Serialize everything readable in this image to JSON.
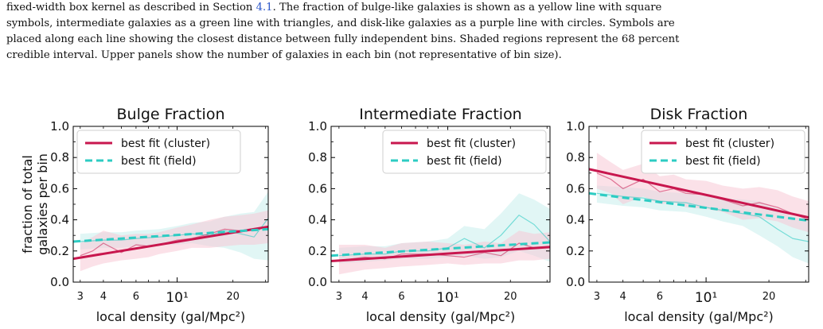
{
  "caption": {
    "line1_before_ref": "fixed-width box kernel as described in Section ",
    "ref": "4.1",
    "line1_after_ref": ". The fraction of bulge-like galaxies is shown as a yellow line with square",
    "line2": "symbols, intermediate galaxies as a green line with triangles, and disk-like galaxies as a purple line with circles. Symbols are",
    "line3": "placed along each line showing the closest distance between fully independent bins. Shaded regions represent the 68 percent",
    "line4": "credible interval. Upper panels show the number of galaxies in each bin (not representative of bin size)."
  },
  "colors": {
    "cluster": "#c8174e",
    "cluster_band": "#f7c9d6",
    "field": "#2dccc3",
    "field_band": "#c8efec",
    "overlap_band": "#d8d8d8"
  },
  "chart_data": [
    {
      "type": "line",
      "title": "Bulge Fraction",
      "ylabel": [
        "fraction of total",
        "galaxies per bin"
      ],
      "xlabel": "local density (gal/Mpc²)",
      "xscale": "log",
      "xlim": [
        2.75,
        31
      ],
      "ylim": [
        0,
        1.0
      ],
      "xticks_major": [
        {
          "v": 3,
          "label": "3"
        },
        {
          "v": 4,
          "label": "4"
        },
        {
          "v": 6,
          "label": "6"
        },
        {
          "v": 10,
          "label": "10¹"
        },
        {
          "v": 20,
          "label": "20"
        }
      ],
      "yticks": [
        "0.0",
        "0.2",
        "0.4",
        "0.6",
        "0.8",
        "1.0"
      ],
      "legend": {
        "placement": "top-left",
        "entries": [
          "best fit (cluster)",
          "best fit (field)"
        ]
      },
      "fit_cluster": {
        "x": [
          2.75,
          31
        ],
        "y": [
          0.15,
          0.355
        ]
      },
      "fit_field": {
        "x": [
          2.75,
          31
        ],
        "y": [
          0.26,
          0.34
        ]
      },
      "raw_cluster": {
        "x": [
          3,
          3.5,
          4,
          5,
          6,
          7,
          8,
          10,
          12,
          15,
          18,
          22,
          26,
          31
        ],
        "y": [
          0.17,
          0.2,
          0.25,
          0.19,
          0.24,
          0.23,
          0.24,
          0.27,
          0.28,
          0.31,
          0.34,
          0.33,
          0.34,
          0.36
        ]
      },
      "raw_field": {
        "x": [
          3,
          4,
          5,
          6,
          8,
          10,
          12,
          15,
          18,
          22,
          26,
          31
        ],
        "y": [
          0.26,
          0.27,
          0.27,
          0.28,
          0.29,
          0.3,
          0.31,
          0.3,
          0.33,
          0.31,
          0.29,
          0.41
        ]
      },
      "band_cluster": {
        "lo": [
          0.07,
          0.1,
          0.12,
          0.14,
          0.15,
          0.16,
          0.18,
          0.2,
          0.22,
          0.22,
          0.23,
          0.24,
          0.24,
          0.25
        ],
        "hi": [
          0.25,
          0.29,
          0.33,
          0.3,
          0.31,
          0.31,
          0.32,
          0.35,
          0.37,
          0.4,
          0.42,
          0.43,
          0.44,
          0.46
        ]
      },
      "band_field": {
        "lo": [
          0.21,
          0.22,
          0.22,
          0.23,
          0.24,
          0.24,
          0.25,
          0.23,
          0.22,
          0.19,
          0.15,
          0.14
        ],
        "hi": [
          0.31,
          0.32,
          0.32,
          0.33,
          0.34,
          0.36,
          0.38,
          0.39,
          0.42,
          0.44,
          0.45,
          0.58
        ]
      }
    },
    {
      "type": "line",
      "title": "Intermediate Fraction",
      "xlabel": "local density (gal/Mpc²)",
      "xscale": "log",
      "xlim": [
        2.75,
        31
      ],
      "ylim": [
        0,
        1.0
      ],
      "xticks_major": [
        {
          "v": 3,
          "label": "3"
        },
        {
          "v": 4,
          "label": "4"
        },
        {
          "v": 6,
          "label": "6"
        },
        {
          "v": 10,
          "label": "10¹"
        },
        {
          "v": 20,
          "label": "20"
        }
      ],
      "yticks": [
        "0.0",
        "0.2",
        "0.4",
        "0.6",
        "0.8",
        "1.0"
      ],
      "legend": {
        "placement": "top-right",
        "entries": [
          "best fit (cluster)",
          "best fit (field)"
        ]
      },
      "fit_cluster": {
        "x": [
          2.75,
          31
        ],
        "y": [
          0.135,
          0.225
        ]
      },
      "fit_field": {
        "x": [
          2.75,
          31
        ],
        "y": [
          0.17,
          0.255
        ]
      },
      "raw_cluster": {
        "x": [
          3,
          4,
          5,
          6,
          8,
          10,
          12,
          15,
          18,
          22,
          26,
          31
        ],
        "y": [
          0.14,
          0.16,
          0.15,
          0.18,
          0.18,
          0.17,
          0.16,
          0.19,
          0.17,
          0.25,
          0.22,
          0.23
        ]
      },
      "raw_field": {
        "x": [
          3,
          4,
          5,
          6,
          8,
          10,
          12,
          15,
          18,
          22,
          26,
          31
        ],
        "y": [
          0.17,
          0.18,
          0.18,
          0.2,
          0.2,
          0.22,
          0.28,
          0.22,
          0.3,
          0.43,
          0.37,
          0.26
        ]
      },
      "band_cluster": {
        "lo": [
          0.05,
          0.08,
          0.09,
          0.1,
          0.11,
          0.12,
          0.11,
          0.12,
          0.12,
          0.14,
          0.14,
          0.15
        ],
        "hi": [
          0.24,
          0.24,
          0.22,
          0.25,
          0.26,
          0.25,
          0.24,
          0.26,
          0.25,
          0.33,
          0.31,
          0.32
        ]
      },
      "band_field": {
        "lo": [
          0.12,
          0.13,
          0.14,
          0.15,
          0.15,
          0.16,
          0.17,
          0.15,
          0.16,
          0.2,
          0.17,
          0.13
        ],
        "hi": [
          0.22,
          0.23,
          0.23,
          0.25,
          0.26,
          0.28,
          0.36,
          0.34,
          0.44,
          0.57,
          0.53,
          0.47
        ]
      }
    },
    {
      "type": "line",
      "title": "Disk Fraction",
      "xlabel": "local density (gal/Mpc²)",
      "xscale": "log",
      "xlim": [
        2.75,
        31
      ],
      "ylim": [
        0,
        1.0
      ],
      "xticks_major": [
        {
          "v": 3,
          "label": "3"
        },
        {
          "v": 4,
          "label": "4"
        },
        {
          "v": 6,
          "label": "6"
        },
        {
          "v": 10,
          "label": "10¹"
        },
        {
          "v": 20,
          "label": "20"
        }
      ],
      "yticks": [
        "0.0",
        "0.2",
        "0.4",
        "0.6",
        "0.8",
        "1.0"
      ],
      "legend": {
        "placement": "top-right",
        "entries": [
          "best fit (cluster)",
          "best fit (field)"
        ]
      },
      "fit_cluster": {
        "x": [
          2.75,
          31
        ],
        "y": [
          0.725,
          0.415
        ]
      },
      "fit_field": {
        "x": [
          2.75,
          31
        ],
        "y": [
          0.57,
          0.395
        ]
      },
      "raw_cluster": {
        "x": [
          3,
          3.5,
          4,
          5,
          6,
          7,
          8,
          10,
          12,
          15,
          18,
          22,
          26,
          31
        ],
        "y": [
          0.7,
          0.66,
          0.6,
          0.66,
          0.58,
          0.6,
          0.57,
          0.56,
          0.53,
          0.49,
          0.51,
          0.48,
          0.44,
          0.4
        ]
      },
      "raw_field": {
        "x": [
          3,
          4,
          5,
          6,
          8,
          10,
          12,
          15,
          18,
          22,
          26,
          31
        ],
        "y": [
          0.57,
          0.55,
          0.54,
          0.52,
          0.51,
          0.48,
          0.46,
          0.44,
          0.42,
          0.34,
          0.28,
          0.26
        ]
      },
      "band_cluster": {
        "lo": [
          0.6,
          0.57,
          0.5,
          0.55,
          0.5,
          0.51,
          0.48,
          0.47,
          0.45,
          0.4,
          0.41,
          0.39,
          0.35,
          0.32
        ],
        "hi": [
          0.83,
          0.77,
          0.72,
          0.76,
          0.68,
          0.69,
          0.66,
          0.65,
          0.62,
          0.6,
          0.61,
          0.59,
          0.55,
          0.52
        ]
      },
      "band_field": {
        "lo": [
          0.51,
          0.49,
          0.48,
          0.46,
          0.45,
          0.42,
          0.39,
          0.36,
          0.3,
          0.23,
          0.16,
          0.12
        ],
        "hi": [
          0.62,
          0.61,
          0.6,
          0.58,
          0.57,
          0.55,
          0.54,
          0.53,
          0.52,
          0.47,
          0.42,
          0.4
        ]
      }
    }
  ]
}
